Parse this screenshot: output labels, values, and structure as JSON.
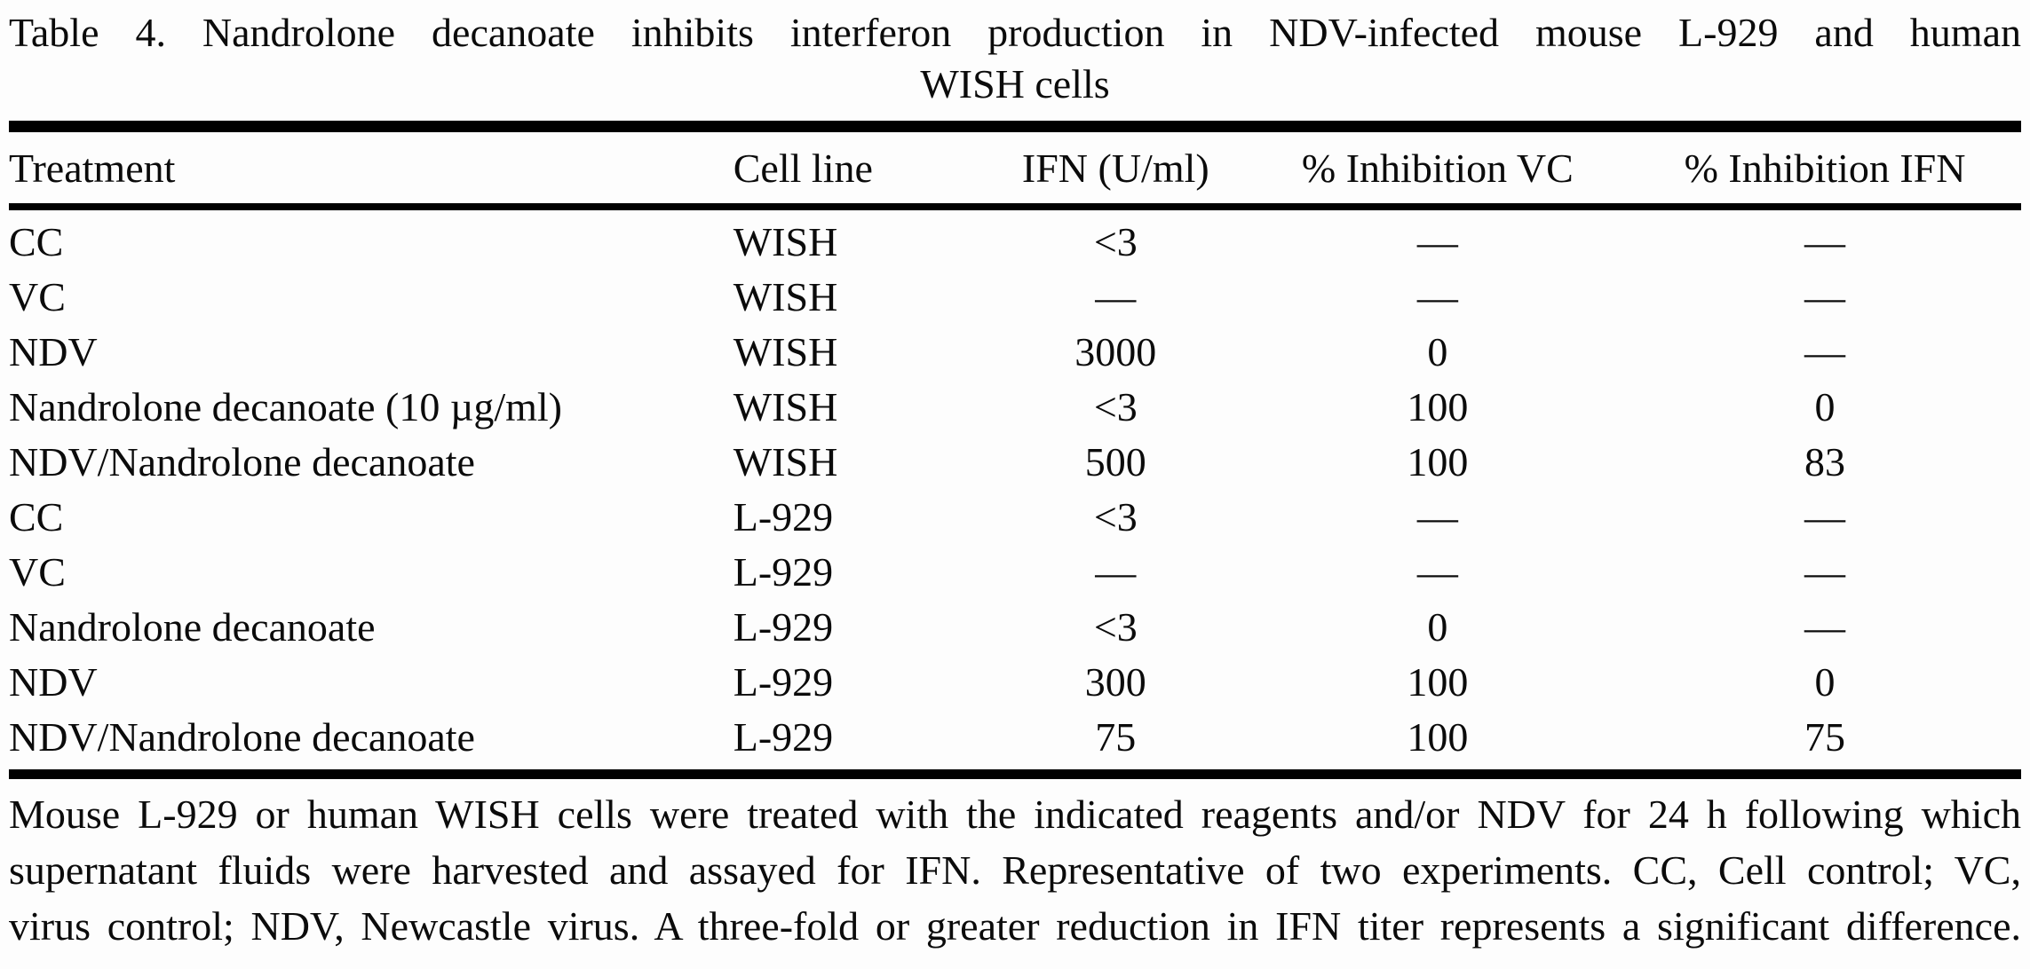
{
  "title": {
    "line1": "Table 4. Nandrolone decanoate inhibits interferon production in NDV-infected mouse L-929 and human",
    "line2": "WISH cells"
  },
  "table": {
    "columns": [
      "Treatment",
      "Cell line",
      "IFN (U/ml)",
      "% Inhibition VC",
      "% Inhibition IFN"
    ],
    "rows": [
      [
        "CC",
        "WISH",
        "<3",
        "—",
        "—"
      ],
      [
        "VC",
        "WISH",
        "—",
        "—",
        "—"
      ],
      [
        "NDV",
        "WISH",
        "3000",
        "0",
        "—"
      ],
      [
        "Nandrolone decanoate (10 µg/ml)",
        "WISH",
        "<3",
        "100",
        "0"
      ],
      [
        "NDV/Nandrolone decanoate",
        "WISH",
        "500",
        "100",
        "83"
      ],
      [
        "CC",
        "L-929",
        "<3",
        "—",
        "—"
      ],
      [
        "VC",
        "L-929",
        "—",
        "—",
        "—"
      ],
      [
        "Nandrolone decanoate",
        "L-929",
        "<3",
        "0",
        "—"
      ],
      [
        "NDV",
        "L-929",
        "300",
        "100",
        "0"
      ],
      [
        "NDV/Nandrolone decanoate",
        "L-929",
        "75",
        "100",
        "75"
      ]
    ]
  },
  "footnote": {
    "lines": [
      "Mouse L-929 or human WISH cells were treated with the indicated reagents and/or NDV for 24 h following which",
      "supernatant fluids were harvested and assayed for IFN. Representative of two experiments. CC, Cell control; VC,",
      "virus control; NDV, Newcastle virus. A three-fold or greater reduction in IFN titer represents a significant difference."
    ]
  },
  "chart_data": {
    "type": "table",
    "title": "Table 4. Nandrolone decanoate inhibits interferon production in NDV-infected mouse L-929 and human WISH cells",
    "columns": [
      "Treatment",
      "Cell line",
      "IFN (U/ml)",
      "% Inhibition VC",
      "% Inhibition IFN"
    ],
    "rows": [
      [
        "CC",
        "WISH",
        "<3",
        "—",
        "—"
      ],
      [
        "VC",
        "WISH",
        "—",
        "—",
        "—"
      ],
      [
        "NDV",
        "WISH",
        "3000",
        "0",
        "—"
      ],
      [
        "Nandrolone decanoate (10 µg/ml)",
        "WISH",
        "<3",
        "100",
        "0"
      ],
      [
        "NDV/Nandrolone decanoate",
        "WISH",
        "500",
        "100",
        "83"
      ],
      [
        "CC",
        "L-929",
        "<3",
        "—",
        "—"
      ],
      [
        "VC",
        "L-929",
        "—",
        "—",
        "—"
      ],
      [
        "Nandrolone decanoate",
        "L-929",
        "<3",
        "0",
        "—"
      ],
      [
        "NDV",
        "L-929",
        "300",
        "100",
        "0"
      ],
      [
        "NDV/Nandrolone decanoate",
        "L-929",
        "75",
        "100",
        "75"
      ]
    ]
  },
  "colors": {
    "background": "#fdfdfd",
    "text": "#0b0b0b",
    "rule": "#000000"
  }
}
